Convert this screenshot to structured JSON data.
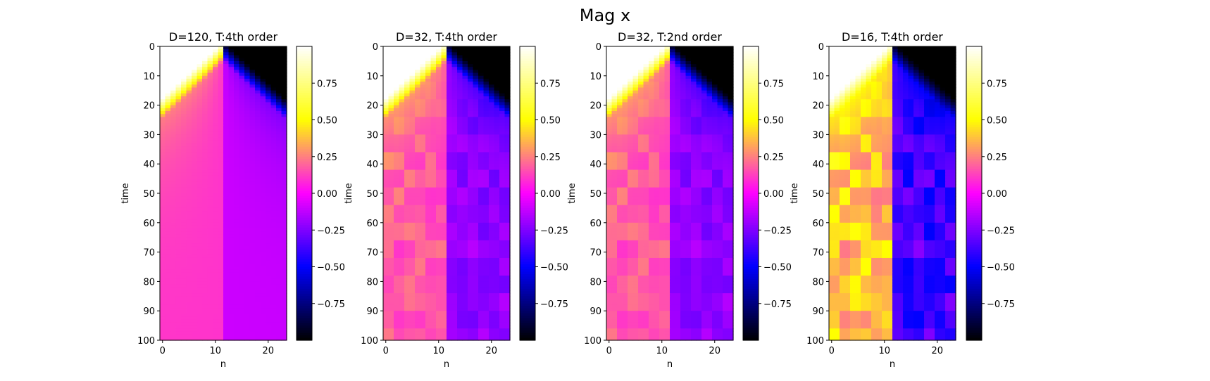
{
  "figure": {
    "title": "Mag x"
  },
  "colormap": [
    "#000000",
    "#0000ff",
    "#ff00ff",
    "#ffff00",
    "#ffffff"
  ],
  "chart_data": [
    {
      "type": "heatmap",
      "title": "D=120, T:4th order",
      "xlabel": "n",
      "ylabel": "time",
      "n_sites": 24,
      "xlim": [
        -0.5,
        23.5
      ],
      "ylim": [
        100,
        0
      ],
      "x_ticks": [
        0,
        10,
        20
      ],
      "y_ticks": [
        0,
        10,
        20,
        30,
        40,
        50,
        60,
        70,
        80,
        90,
        100
      ],
      "colorbar": {
        "vmin": -1,
        "vmax": 1,
        "ticks": [
          0.75,
          0.5,
          0.25,
          0.0,
          -0.25,
          -0.5,
          -0.75
        ],
        "tick_labels": [
          "0.75",
          "0.50",
          "0.25",
          "0.00",
          "−0.25",
          "−0.50",
          "−0.75"
        ]
      },
      "field": {
        "description": "domain wall at n=11.5, initial +1 left / -1 right",
        "late_time_value_left": 0.1,
        "late_time_value_right": -0.1,
        "noise": 0.0
      }
    },
    {
      "type": "heatmap",
      "title": "D=32, T:4th order",
      "xlabel": "n",
      "ylabel": "time",
      "n_sites": 24,
      "xlim": [
        -0.5,
        23.5
      ],
      "ylim": [
        100,
        0
      ],
      "x_ticks": [
        0,
        10,
        20
      ],
      "y_ticks": [
        0,
        10,
        20,
        30,
        40,
        50,
        60,
        70,
        80,
        90,
        100
      ],
      "colorbar": {
        "vmin": -1,
        "vmax": 1,
        "ticks": [
          0.75,
          0.5,
          0.25,
          0.0,
          -0.25,
          -0.5,
          -0.75
        ],
        "tick_labels": [
          "0.75",
          "0.50",
          "0.25",
          "0.00",
          "−0.25",
          "−0.50",
          "−0.75"
        ]
      },
      "field": {
        "description": "domain wall at n=11.5, initial +1 left / -1 right",
        "late_time_value_left": 0.16,
        "late_time_value_right": -0.2,
        "noise": 0.07
      }
    },
    {
      "type": "heatmap",
      "title": "D=32, T:2nd order",
      "xlabel": "n",
      "ylabel": "time",
      "n_sites": 24,
      "xlim": [
        -0.5,
        23.5
      ],
      "ylim": [
        100,
        0
      ],
      "x_ticks": [
        0,
        10,
        20
      ],
      "y_ticks": [
        0,
        10,
        20,
        30,
        40,
        50,
        60,
        70,
        80,
        90,
        100
      ],
      "colorbar": {
        "vmin": -1,
        "vmax": 1,
        "ticks": [
          0.75,
          0.5,
          0.25,
          0.0,
          -0.25,
          -0.5,
          -0.75
        ],
        "tick_labels": [
          "0.75",
          "0.50",
          "0.25",
          "0.00",
          "−0.25",
          "−0.50",
          "−0.75"
        ]
      },
      "field": {
        "description": "domain wall at n=11.5, initial +1 left / -1 right",
        "late_time_value_left": 0.16,
        "late_time_value_right": -0.2,
        "noise": 0.07
      }
    },
    {
      "type": "heatmap",
      "title": "D=16, T:4th order",
      "xlabel": "n",
      "ylabel": "time",
      "n_sites": 24,
      "xlim": [
        -0.5,
        23.5
      ],
      "ylim": [
        100,
        0
      ],
      "x_ticks": [
        0,
        10,
        20
      ],
      "y_ticks": [
        0,
        10,
        20,
        30,
        40,
        50,
        60,
        70,
        80,
        90,
        100
      ],
      "colorbar": {
        "vmin": -1,
        "vmax": 1,
        "ticks": [
          0.75,
          0.5,
          0.25,
          0.0,
          -0.25,
          -0.5,
          -0.75
        ],
        "tick_labels": [
          "0.75",
          "0.50",
          "0.25",
          "0.00",
          "−0.25",
          "−0.50",
          "−0.75"
        ]
      },
      "field": {
        "description": "domain wall at n=11.5, initial +1 left / -1 right",
        "late_time_value_left": 0.36,
        "late_time_value_right": -0.36,
        "noise": 0.14
      }
    }
  ]
}
